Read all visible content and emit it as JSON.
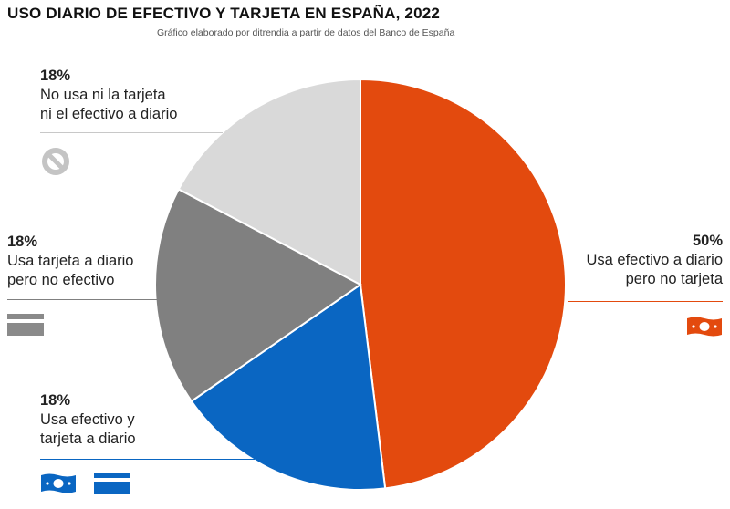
{
  "header": {
    "title": "USO DIARIO DE EFECTIVO Y TARJETA EN ESPAÑA, 2022",
    "subtitle": "Gráfico elaborado por ditrendia a partir de datos del Banco de España"
  },
  "colors": {
    "cash_only": "#e34a0e",
    "both": "#0a66c2",
    "card_only": "#808080",
    "neither": "#d9d9d9"
  },
  "chart_data": {
    "type": "pie",
    "title": "USO DIARIO DE EFECTIVO Y TARJETA EN ESPAÑA, 2022",
    "slices": [
      {
        "label": "Usa efectivo a diario pero no tarjeta",
        "value": 50,
        "color": "#e34a0e"
      },
      {
        "label": "Usa efectivo y tarjeta a diario",
        "value": 18,
        "color": "#0a66c2"
      },
      {
        "label": "Usa tarjeta a diario pero no efectivo",
        "value": 18,
        "color": "#808080"
      },
      {
        "label": "No usa ni la tarjeta ni el efectivo a diario",
        "value": 18,
        "color": "#d9d9d9"
      }
    ]
  },
  "labels": {
    "neither": {
      "pct": "18%",
      "line1": "No usa ni la tarjeta",
      "line2": "ni el efectivo a diario",
      "icon": "prohibited-icon"
    },
    "card": {
      "pct": "18%",
      "line1": "Usa tarjeta a diario",
      "line2": "pero no efectivo",
      "icon": "credit-card-icon"
    },
    "both": {
      "pct": "18%",
      "line1": "Usa efectivo y",
      "line2": "tarjeta a diario",
      "icon": "banknote-and-card-icon"
    },
    "cash": {
      "pct": "50%",
      "line1": "Usa efectivo a diario",
      "line2": "pero no tarjeta",
      "icon": "banknote-icon"
    }
  }
}
